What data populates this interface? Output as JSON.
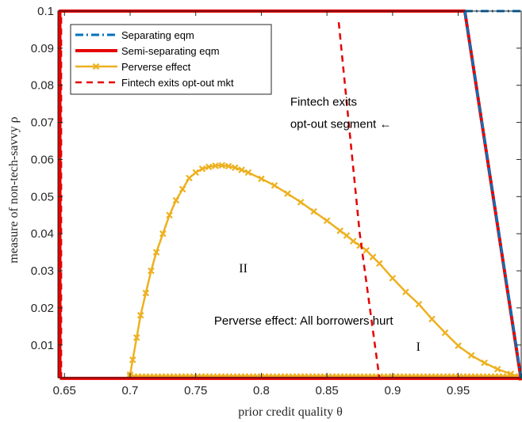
{
  "chart_data": {
    "type": "line",
    "xlabel": "prior credit quality θ",
    "ylabel": "measure of non-tech-savvy ρ",
    "xlim": [
      0.645,
      0.998
    ],
    "ylim": [
      0.0012,
      0.1
    ],
    "xticks": [
      "0.65",
      "0.7",
      "0.75",
      "0.8",
      "0.85",
      "0.9",
      "0.95"
    ],
    "xtick_values": [
      0.65,
      0.7,
      0.75,
      0.8,
      0.85,
      0.9,
      0.95
    ],
    "yticks": [
      "0.01",
      "0.02",
      "0.03",
      "0.04",
      "0.05",
      "0.06",
      "0.07",
      "0.08",
      "0.09",
      "0.1"
    ],
    "ytick_values": [
      0.01,
      0.02,
      0.03,
      0.04,
      0.05,
      0.06,
      0.07,
      0.08,
      0.09,
      0.1
    ],
    "grid": false,
    "legend_position": "top-left",
    "series": [
      {
        "name": "Separating eqm",
        "color": "#0072BD",
        "style": "dashdot",
        "x": [
          0.955,
          0.998,
          null,
          0.955,
          0.998
        ],
        "y": [
          0.1,
          0.1,
          null,
          0.1,
          0.001
        ]
      },
      {
        "name": "Semi-separating eqm",
        "color": "#E60000",
        "style": "solid",
        "x": [
          0.6465,
          0.6465,
          0.955,
          0.998,
          null,
          0.6465,
          0.998
        ],
        "y": [
          0.001,
          0.1,
          0.1,
          0.0005,
          null,
          0.001,
          0.001
        ]
      },
      {
        "name": "Perverse effect",
        "color": "#EDB120",
        "style": "solid-marker-x",
        "x": [
          0.7,
          0.702,
          0.705,
          0.708,
          0.712,
          0.716,
          0.72,
          0.725,
          0.73,
          0.735,
          0.74,
          0.745,
          0.75,
          0.755,
          0.76,
          0.765,
          0.77,
          0.775,
          0.78,
          0.785,
          0.79,
          0.8,
          0.81,
          0.82,
          0.83,
          0.84,
          0.85,
          0.86,
          0.865,
          0.87,
          0.875,
          0.88,
          0.885,
          0.89,
          0.9,
          0.91,
          0.92,
          0.93,
          0.94,
          0.95,
          0.96,
          0.97,
          0.98,
          0.99,
          0.998
        ],
        "y": [
          0.002,
          0.006,
          0.012,
          0.018,
          0.024,
          0.03,
          0.035,
          0.04,
          0.045,
          0.049,
          0.052,
          0.055,
          0.0565,
          0.0575,
          0.058,
          0.0583,
          0.0584,
          0.0582,
          0.0578,
          0.0572,
          0.0565,
          0.0548,
          0.053,
          0.0508,
          0.0485,
          0.046,
          0.0435,
          0.0408,
          0.0395,
          0.038,
          0.0368,
          0.0355,
          0.0337,
          0.032,
          0.028,
          0.0243,
          0.021,
          0.017,
          0.0133,
          0.0098,
          0.0072,
          0.0052,
          0.0035,
          0.0022,
          0.0012
        ]
      },
      {
        "name": "Fintech exits opt-out mkt",
        "color": "#E60000",
        "style": "dashed",
        "x": [
          0.6475,
          0.6475,
          null,
          0.6475,
          0.89,
          null,
          0.859,
          0.875,
          0.89
        ],
        "y": [
          0.001,
          0.1,
          null,
          0.001,
          0.001,
          null,
          0.097,
          0.04,
          0.001
        ]
      },
      {
        "name": "",
        "color": "#EDB120",
        "style": "baseline-markers",
        "x": [
          0.7,
          0.998
        ],
        "y": [
          0.0015,
          0.0015
        ]
      }
    ],
    "annotations": [
      {
        "text": "Fintech exits",
        "x": 0.822,
        "y": 0.0745
      },
      {
        "text": "opt-out segment ←",
        "x": 0.822,
        "y": 0.0685
      },
      {
        "text": "II",
        "x": 0.783,
        "y": 0.0296
      },
      {
        "text": "Perverse effect: All borrowers hurt",
        "x": 0.764,
        "y": 0.0155
      },
      {
        "text": "I",
        "x": 0.918,
        "y": 0.0085
      }
    ]
  }
}
